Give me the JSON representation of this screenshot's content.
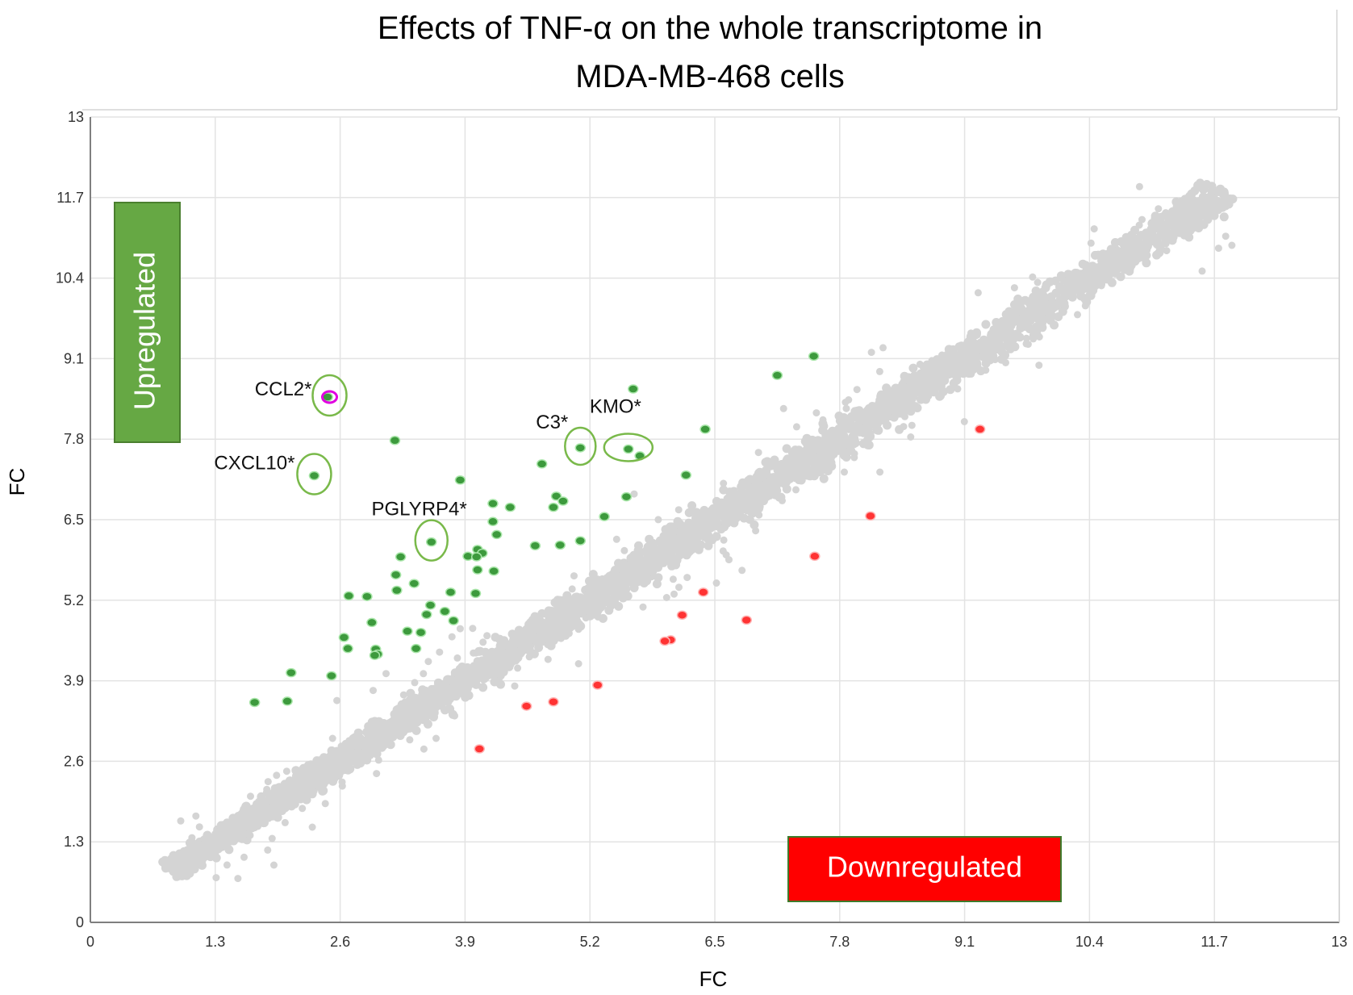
{
  "chart_data": {
    "type": "scatter",
    "title_lines": [
      "Effects of TNF-α  on the whole transcriptome in",
      "MDA-MB-468 cells"
    ],
    "xlabel": "FC",
    "ylabel": "FC",
    "xlim": [
      0,
      13
    ],
    "ylim": [
      0,
      13
    ],
    "x_ticks": [
      "0",
      "1.3",
      "2.6",
      "3.9",
      "5.2",
      "6.5",
      "7.8",
      "9.1",
      "10.4",
      "11.7",
      "13"
    ],
    "y_ticks": [
      "0",
      "1.3",
      "2.6",
      "3.9",
      "5.2",
      "6.5",
      "7.8",
      "9.1",
      "10.4",
      "11.7",
      "13"
    ],
    "grid": true,
    "colors": {
      "background_points": "#d4d4d4",
      "upregulated": "#3d9a3d",
      "downregulated": "#ff3333",
      "highlight_ring": "#79b94a",
      "ccl2_highlight": "#e000e0",
      "up_box": "#66a844",
      "down_box": "#ff0000"
    },
    "cloud": {
      "description_free": true,
      "x_range": [
        0.85,
        11.8
      ],
      "band_half_width": 0.22
    },
    "boxes": {
      "upregulated": "Upregulated",
      "downregulated": "Downregulated"
    },
    "upregulated_points": [
      [
        2.47,
        8.48
      ],
      [
        2.33,
        7.21
      ],
      [
        3.17,
        7.78
      ],
      [
        3.85,
        7.14
      ],
      [
        3.55,
        6.14
      ],
      [
        5.1,
        7.66
      ],
      [
        5.6,
        7.64
      ],
      [
        5.65,
        8.61
      ],
      [
        7.53,
        9.14
      ],
      [
        7.15,
        8.83
      ],
      [
        6.4,
        7.96
      ],
      [
        5.72,
        7.53
      ],
      [
        6.2,
        7.22
      ],
      [
        5.58,
        6.87
      ],
      [
        4.7,
        7.4
      ],
      [
        4.85,
        6.88
      ],
      [
        4.92,
        6.8
      ],
      [
        4.82,
        6.7
      ],
      [
        4.19,
        6.76
      ],
      [
        4.37,
        6.7
      ],
      [
        5.35,
        6.55
      ],
      [
        4.19,
        6.47
      ],
      [
        4.23,
        6.26
      ],
      [
        5.1,
        6.16
      ],
      [
        4.63,
        6.08
      ],
      [
        4.89,
        6.09
      ],
      [
        4.03,
        6.02
      ],
      [
        4.08,
        5.96
      ],
      [
        3.93,
        5.91
      ],
      [
        4.02,
        5.9
      ],
      [
        4.2,
        5.67
      ],
      [
        4.03,
        5.69
      ],
      [
        3.23,
        5.9
      ],
      [
        3.18,
        5.61
      ],
      [
        3.37,
        5.47
      ],
      [
        3.19,
        5.36
      ],
      [
        3.75,
        5.33
      ],
      [
        4.01,
        5.31
      ],
      [
        2.69,
        5.27
      ],
      [
        2.88,
        5.26
      ],
      [
        3.54,
        5.12
      ],
      [
        3.69,
        5.02
      ],
      [
        3.5,
        4.97
      ],
      [
        3.78,
        4.87
      ],
      [
        2.93,
        4.84
      ],
      [
        3.3,
        4.7
      ],
      [
        3.44,
        4.68
      ],
      [
        2.64,
        4.6
      ],
      [
        2.68,
        4.42
      ],
      [
        2.97,
        4.41
      ],
      [
        3.39,
        4.42
      ],
      [
        2.99,
        4.33
      ],
      [
        2.96,
        4.31
      ],
      [
        2.09,
        4.03
      ],
      [
        2.51,
        3.98
      ],
      [
        1.71,
        3.55
      ],
      [
        2.05,
        3.57
      ]
    ],
    "downregulated_points": [
      [
        9.26,
        7.96
      ],
      [
        8.12,
        6.56
      ],
      [
        7.54,
        5.91
      ],
      [
        6.38,
        5.33
      ],
      [
        6.16,
        4.96
      ],
      [
        6.83,
        4.88
      ],
      [
        6.04,
        4.56
      ],
      [
        5.98,
        4.54
      ],
      [
        5.28,
        3.83
      ],
      [
        4.82,
        3.56
      ],
      [
        4.54,
        3.49
      ],
      [
        4.05,
        2.8
      ]
    ],
    "annotations": [
      {
        "label": "CCL2*",
        "x": 2.49,
        "y": 8.48
      },
      {
        "label": "CXCL10*",
        "x": 2.33,
        "y": 7.21
      },
      {
        "label": "PGLYRP4*",
        "x": 3.55,
        "y": 6.14
      },
      {
        "label": "C3*",
        "x": 5.1,
        "y": 7.66
      },
      {
        "label": "KMO*",
        "x": 5.6,
        "y": 7.64
      }
    ]
  }
}
